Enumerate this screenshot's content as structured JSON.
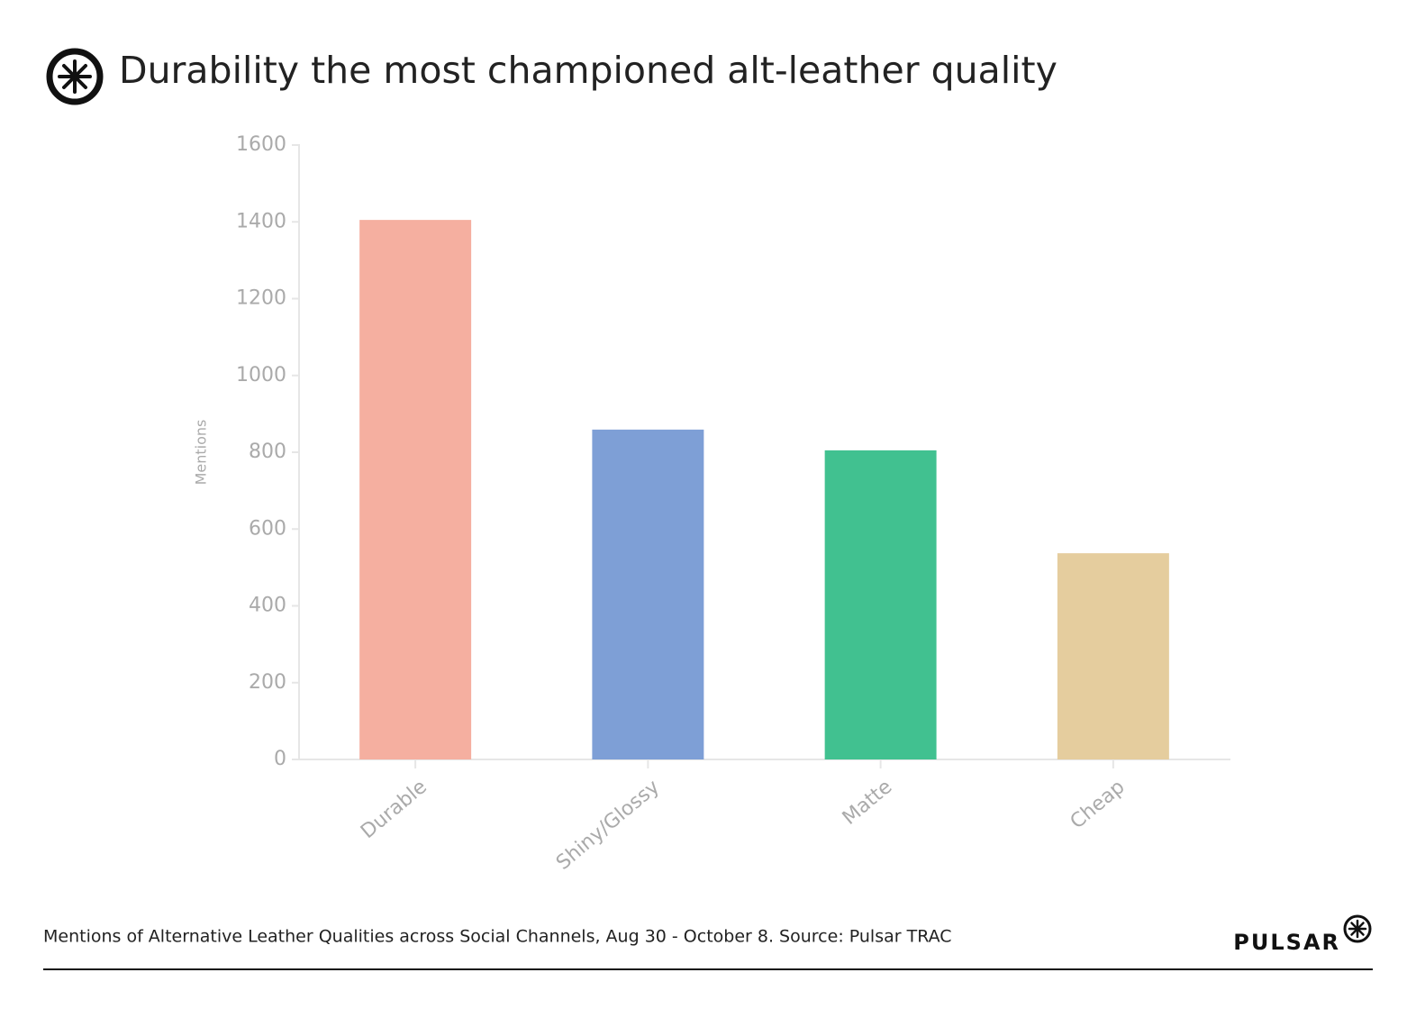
{
  "chart_data": {
    "type": "bar",
    "title": "Durability the most championed alt-leather quality",
    "y_label": "Mentions",
    "categories": [
      "Durable",
      "Shiny/Glossy",
      "Matte",
      "Cheap"
    ],
    "values": [
      1405,
      859,
      805,
      537
    ],
    "colors": [
      "#f5afa0",
      "#7e9fd6",
      "#41c190",
      "#e5cd9e"
    ],
    "ylim": [
      0,
      1600
    ],
    "yticks": [
      0,
      200,
      400,
      600,
      800,
      1000,
      1200,
      1400,
      1600
    ],
    "grid": false,
    "caption": "Mentions of Alternative Leather Qualities across Social Channels, Aug 30 - October 8. Source: Pulsar TRAC",
    "brand": "PULSAR"
  }
}
